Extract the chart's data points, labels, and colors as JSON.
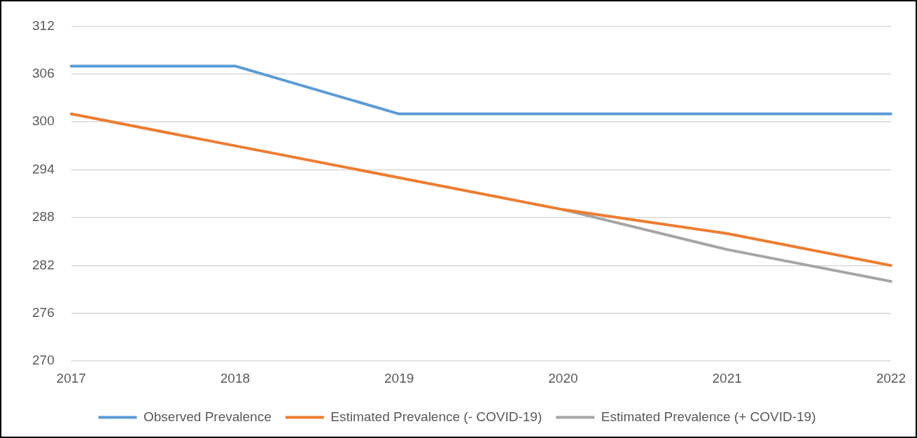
{
  "chart_data": {
    "type": "line",
    "categories": [
      "2017",
      "2018",
      "2019",
      "2020",
      "2021",
      "2022"
    ],
    "series": [
      {
        "name": "Observed Prevalence",
        "color": "#5b9bd5",
        "values": [
          307,
          307,
          301,
          301,
          301,
          301
        ]
      },
      {
        "name": "Estimated Prevalence (- COVID-19)",
        "color": "#ed7d31",
        "values": [
          301,
          297,
          293,
          289,
          286,
          282
        ]
      },
      {
        "name": "Estimated Prevalence (+ COVID-19)",
        "color": "#a5a5a5",
        "values": [
          null,
          null,
          null,
          289,
          284,
          280
        ]
      }
    ],
    "ylim": [
      270,
      312
    ],
    "yticks": [
      270,
      276,
      282,
      288,
      294,
      300,
      306,
      312
    ],
    "grid": "y",
    "legend": "bottom",
    "marker": "none",
    "line_style": "solid"
  }
}
